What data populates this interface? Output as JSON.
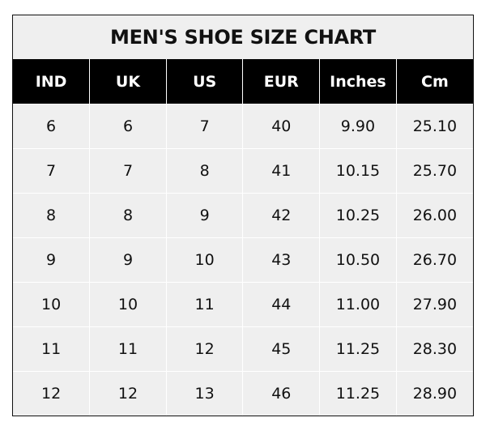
{
  "chart_data": {
    "type": "table",
    "title": "MEN'S SHOE SIZE CHART",
    "columns": [
      "IND",
      "UK",
      "US",
      "EUR",
      "Inches",
      "Cm"
    ],
    "rows": [
      [
        "6",
        "6",
        "7",
        "40",
        "9.90",
        "25.10"
      ],
      [
        "7",
        "7",
        "8",
        "41",
        "10.15",
        "25.70"
      ],
      [
        "8",
        "8",
        "9",
        "42",
        "10.25",
        "26.00"
      ],
      [
        "9",
        "9",
        "10",
        "43",
        "10.50",
        "26.70"
      ],
      [
        "10",
        "10",
        "11",
        "44",
        "11.00",
        "27.90"
      ],
      [
        "11",
        "11",
        "12",
        "45",
        "11.25",
        "28.30"
      ],
      [
        "12",
        "12",
        "13",
        "46",
        "11.25",
        "28.90"
      ]
    ],
    "colors": {
      "header_bg": "#000000",
      "header_text": "#ffffff",
      "body_bg": "#efefef",
      "grid": "#ffffff"
    }
  }
}
